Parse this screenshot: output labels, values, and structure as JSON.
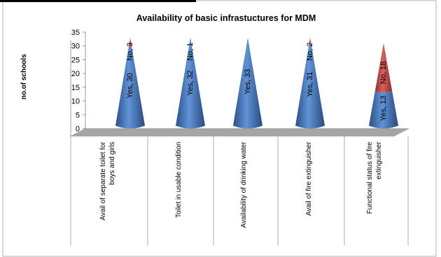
{
  "chart_data": {
    "type": "bar",
    "shape": "cone",
    "stacked": true,
    "title": "Availability  of basic infrastuctures  for MDM",
    "xlabel": "",
    "ylabel": "no.of schools",
    "ylim": [
      0,
      35
    ],
    "yticks": [
      0,
      5,
      10,
      15,
      20,
      25,
      30,
      35
    ],
    "grid": false,
    "legend": "none",
    "categories": [
      "Avail of separate toilet for boys and girls",
      "Toilet in usable condition",
      "Availability of drinking water",
      "Avail of fire extinguisher",
      "Functional status of fire extinguisher"
    ],
    "series": [
      {
        "name": "Yes",
        "values": [
          30,
          32,
          33,
          31,
          13
        ],
        "color": "#4a7ebb"
      },
      {
        "name": "No",
        "values": [
          3,
          1,
          null,
          2,
          18
        ],
        "color": "#c0504d"
      }
    ],
    "data_labels": {
      "yes": [
        "Yes, 30",
        "Yes, 32",
        "Yes, 33",
        "Yes, 31",
        "Yes, 13"
      ],
      "no": [
        "No, 3",
        "No, 1",
        "",
        "No, 2",
        "No, 18"
      ]
    },
    "floor_color": "#a6a6a6"
  }
}
